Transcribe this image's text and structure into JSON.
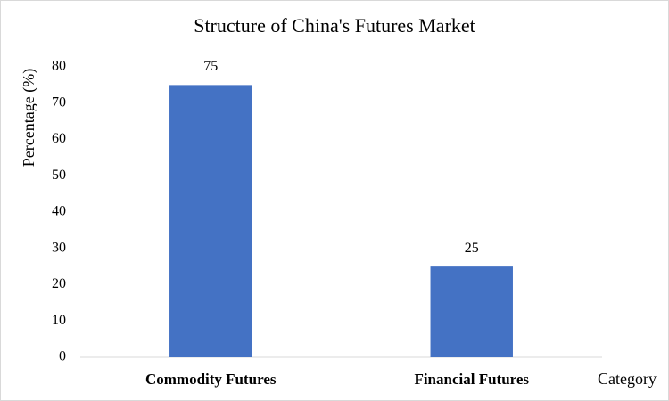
{
  "chart_data": {
    "type": "bar",
    "title": "Structure of China's Futures Market",
    "x_label": "Category",
    "y_label": "Percentage (%)",
    "categories": [
      "Commodity Futures",
      "Financial Futures"
    ],
    "values": [
      75,
      25
    ],
    "color": "#4472c4",
    "ylim": [
      0,
      80
    ],
    "yticks": [
      0,
      10,
      20,
      30,
      40,
      50,
      60,
      70,
      80
    ],
    "grid": false
  }
}
